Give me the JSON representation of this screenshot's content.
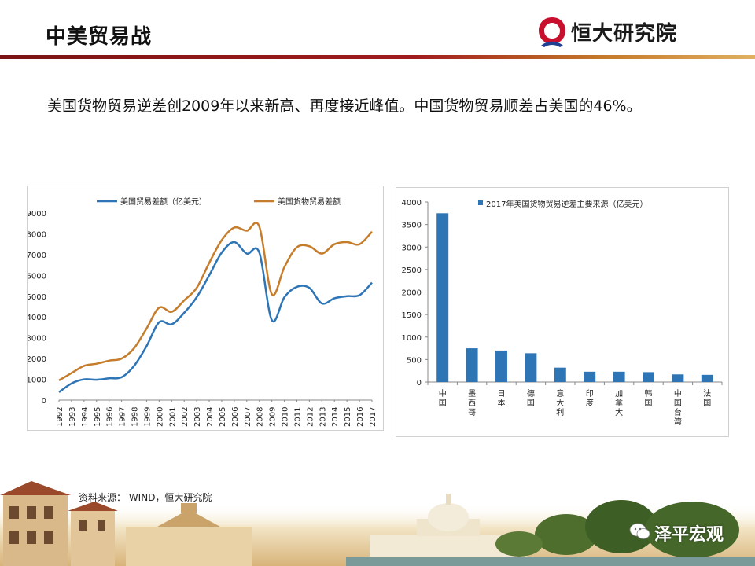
{
  "header": {
    "title": "中美贸易战",
    "logo_text": "恒大研究院",
    "colors": {
      "rule": "#8b1a1a",
      "logo_red": "#c8102e"
    }
  },
  "subtitle": "美国货物贸易逆差创2009年以来新高、再度接近峰值。中国货物贸易顺差占美国的46%。",
  "source": "资料来源： WIND，恒大研究院",
  "watermark": {
    "text": "泽平宏观",
    "icon": "wechat-icon"
  },
  "chart_data": [
    {
      "type": "line",
      "title": "",
      "x": [
        "1992",
        "1993",
        "1994",
        "1995",
        "1996",
        "1997",
        "1998",
        "1999",
        "2000",
        "2001",
        "2002",
        "2003",
        "2004",
        "2005",
        "2006",
        "2007",
        "2008",
        "2009",
        "2010",
        "2011",
        "2012",
        "2013",
        "2014",
        "2015",
        "2016",
        "2017"
      ],
      "series": [
        {
          "name": "美国贸易差额（亿美元）",
          "color": "#2e75b6",
          "values": [
            380,
            800,
            1000,
            980,
            1050,
            1100,
            1650,
            2600,
            3750,
            3650,
            4200,
            4950,
            6000,
            7100,
            7600,
            7050,
            7100,
            3850,
            4950,
            5450,
            5400,
            4650,
            4900,
            5000,
            5050,
            5650
          ]
        },
        {
          "name": "美国货物贸易差额",
          "color": "#c67d2b",
          "values": [
            950,
            1300,
            1650,
            1750,
            1900,
            2000,
            2500,
            3450,
            4450,
            4250,
            4800,
            5400,
            6600,
            7700,
            8300,
            8150,
            8350,
            5100,
            6400,
            7350,
            7400,
            7050,
            7500,
            7600,
            7500,
            8100
          ]
        }
      ],
      "ylim": [
        0,
        9000
      ],
      "yticks": [
        0,
        1000,
        2000,
        3000,
        4000,
        5000,
        6000,
        7000,
        8000,
        9000
      ],
      "legend": "top",
      "grid": false
    },
    {
      "type": "bar",
      "title": "",
      "categories": [
        "中国",
        "墨西哥",
        "日本",
        "德国",
        "意大利",
        "印度",
        "加拿大",
        "韩国",
        "中国台湾",
        "法国"
      ],
      "series": [
        {
          "name": "2017年美国货物贸易逆差主要来源（亿美元）",
          "color": "#2e75b6",
          "values": [
            3750,
            750,
            700,
            640,
            320,
            230,
            230,
            220,
            170,
            160
          ]
        }
      ],
      "ylim": [
        0,
        4000
      ],
      "yticks": [
        0,
        500,
        1000,
        1500,
        2000,
        2500,
        3000,
        3500,
        4000
      ],
      "legend": "top",
      "grid": false
    }
  ]
}
